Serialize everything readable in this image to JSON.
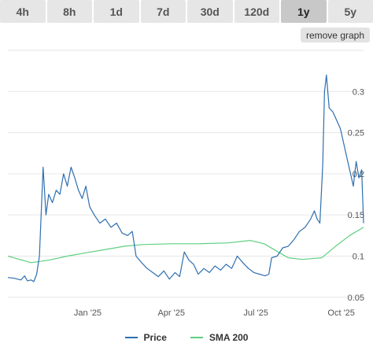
{
  "range_tabs": [
    {
      "label": "4h",
      "active": false
    },
    {
      "label": "8h",
      "active": false
    },
    {
      "label": "1d",
      "active": false
    },
    {
      "label": "7d",
      "active": false
    },
    {
      "label": "30d",
      "active": false
    },
    {
      "label": "120d",
      "active": false
    },
    {
      "label": "1y",
      "active": true
    },
    {
      "label": "5y",
      "active": false
    }
  ],
  "remove_graph_label": "remove graph",
  "colors": {
    "price": "#2e6fb0",
    "sma": "#5fcf80",
    "grid": "#e6e6e6"
  },
  "chart_data": {
    "type": "line",
    "x_tick_labels": [
      "Jan '25",
      "Apr '25",
      "Jul '25",
      "Oct '25"
    ],
    "y_ticks": [
      0.05,
      0.1,
      0.15,
      0.2,
      0.25,
      0.3
    ],
    "y_tick_labels": [
      "0.05",
      "0.1",
      "0.15",
      "0.2",
      "0.25",
      "0.3"
    ],
    "ylim": [
      0.045,
      0.35
    ],
    "grid": true,
    "legend_position": "bottom",
    "series": [
      {
        "name": "Price",
        "points": [
          [
            "2024-10-07",
            0.074
          ],
          [
            "2024-10-14",
            0.073
          ],
          [
            "2024-10-21",
            0.071
          ],
          [
            "2024-10-25",
            0.076
          ],
          [
            "2024-10-28",
            0.07
          ],
          [
            "2024-11-01",
            0.071
          ],
          [
            "2024-11-04",
            0.069
          ],
          [
            "2024-11-07",
            0.078
          ],
          [
            "2024-11-10",
            0.1
          ],
          [
            "2024-11-12",
            0.155
          ],
          [
            "2024-11-14",
            0.208
          ],
          [
            "2024-11-17",
            0.15
          ],
          [
            "2024-11-20",
            0.175
          ],
          [
            "2024-11-24",
            0.165
          ],
          [
            "2024-11-28",
            0.18
          ],
          [
            "2024-12-02",
            0.175
          ],
          [
            "2024-12-06",
            0.2
          ],
          [
            "2024-12-10",
            0.185
          ],
          [
            "2024-12-14",
            0.208
          ],
          [
            "2024-12-18",
            0.195
          ],
          [
            "2024-12-22",
            0.18
          ],
          [
            "2024-12-26",
            0.17
          ],
          [
            "2024-12-30",
            0.185
          ],
          [
            "2025-01-03",
            0.16
          ],
          [
            "2025-01-08",
            0.15
          ],
          [
            "2025-01-14",
            0.14
          ],
          [
            "2025-01-20",
            0.145
          ],
          [
            "2025-01-26",
            0.135
          ],
          [
            "2025-02-01",
            0.14
          ],
          [
            "2025-02-07",
            0.128
          ],
          [
            "2025-02-13",
            0.125
          ],
          [
            "2025-02-18",
            0.13
          ],
          [
            "2025-02-22",
            0.1
          ],
          [
            "2025-02-28",
            0.092
          ],
          [
            "2025-03-06",
            0.085
          ],
          [
            "2025-03-12",
            0.08
          ],
          [
            "2025-03-18",
            0.075
          ],
          [
            "2025-03-24",
            0.082
          ],
          [
            "2025-03-30",
            0.072
          ],
          [
            "2025-04-05",
            0.08
          ],
          [
            "2025-04-10",
            0.075
          ],
          [
            "2025-04-15",
            0.105
          ],
          [
            "2025-04-20",
            0.095
          ],
          [
            "2025-04-25",
            0.09
          ],
          [
            "2025-04-30",
            0.078
          ],
          [
            "2025-05-06",
            0.085
          ],
          [
            "2025-05-12",
            0.08
          ],
          [
            "2025-05-18",
            0.088
          ],
          [
            "2025-05-24",
            0.083
          ],
          [
            "2025-05-30",
            0.09
          ],
          [
            "2025-06-05",
            0.085
          ],
          [
            "2025-06-11",
            0.1
          ],
          [
            "2025-06-17",
            0.092
          ],
          [
            "2025-06-23",
            0.085
          ],
          [
            "2025-06-29",
            0.08
          ],
          [
            "2025-07-05",
            0.078
          ],
          [
            "2025-07-11",
            0.076
          ],
          [
            "2025-07-15",
            0.078
          ],
          [
            "2025-07-18",
            0.098
          ],
          [
            "2025-07-24",
            0.1
          ],
          [
            "2025-07-30",
            0.11
          ],
          [
            "2025-08-05",
            0.112
          ],
          [
            "2025-08-11",
            0.12
          ],
          [
            "2025-08-17",
            0.13
          ],
          [
            "2025-08-23",
            0.135
          ],
          [
            "2025-08-29",
            0.145
          ],
          [
            "2025-09-02",
            0.155
          ],
          [
            "2025-09-05",
            0.145
          ],
          [
            "2025-09-08",
            0.14
          ],
          [
            "2025-09-11",
            0.21
          ],
          [
            "2025-09-13",
            0.3
          ],
          [
            "2025-09-15",
            0.32
          ],
          [
            "2025-09-18",
            0.28
          ],
          [
            "2025-09-22",
            0.275
          ],
          [
            "2025-09-26",
            0.265
          ],
          [
            "2025-09-30",
            0.255
          ],
          [
            "2025-10-04",
            0.235
          ],
          [
            "2025-10-08",
            0.215
          ],
          [
            "2025-10-11",
            0.2
          ],
          [
            "2025-10-14",
            0.185
          ],
          [
            "2025-10-17",
            0.215
          ],
          [
            "2025-10-20",
            0.195
          ],
          [
            "2025-10-23",
            0.205
          ],
          [
            "2025-10-25",
            0.14
          ]
        ]
      },
      {
        "name": "SMA 200",
        "points": [
          [
            "2024-10-07",
            0.1
          ],
          [
            "2024-11-01",
            0.092
          ],
          [
            "2024-11-20",
            0.095
          ],
          [
            "2024-12-10",
            0.1
          ],
          [
            "2024-12-30",
            0.104
          ],
          [
            "2025-01-20",
            0.108
          ],
          [
            "2025-02-10",
            0.112
          ],
          [
            "2025-03-01",
            0.114
          ],
          [
            "2025-04-01",
            0.115
          ],
          [
            "2025-05-01",
            0.115
          ],
          [
            "2025-06-01",
            0.116
          ],
          [
            "2025-06-25",
            0.119
          ],
          [
            "2025-07-10",
            0.115
          ],
          [
            "2025-07-25",
            0.105
          ],
          [
            "2025-08-05",
            0.098
          ],
          [
            "2025-08-20",
            0.096
          ],
          [
            "2025-09-10",
            0.098
          ],
          [
            "2025-09-25",
            0.112
          ],
          [
            "2025-10-10",
            0.125
          ],
          [
            "2025-10-25",
            0.135
          ]
        ]
      }
    ]
  }
}
